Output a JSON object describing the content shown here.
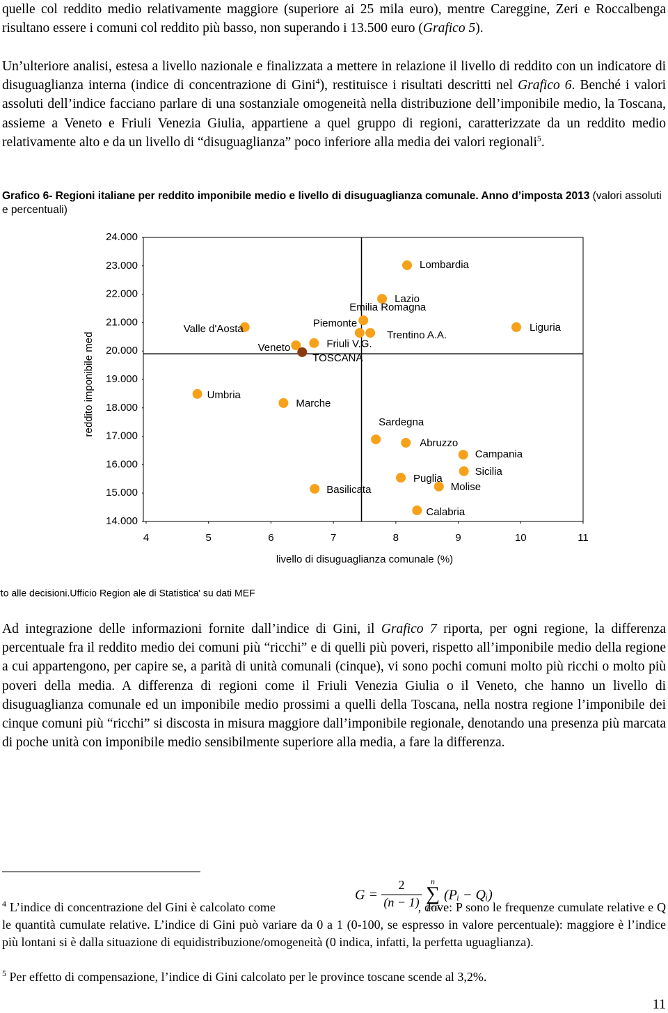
{
  "paragraphs": [
    {
      "runs": [
        "quelle col reddito medio relativamente maggiore (superiore ai 25 mila euro), mentre Careggine, Zeri e Roccalbenga risultano essere i comuni col reddito più basso, non superando i 13.500 euro (",
        {
          "italic": "Grafico 5"
        },
        ")."
      ]
    },
    {
      "runs": [
        "Un’ulteriore analisi, estesa a livello nazionale e finalizzata a mettere in relazione il livello di reddito con un indicatore di disuguaglianza interna (indice di concentrazione di Gini",
        {
          "sup": "4"
        },
        "), restituisce i risultati descritti nel ",
        {
          "italic": "Grafico 6"
        },
        ". Benché i valori assoluti dell’indice facciano parlare di una sostanziale omogeneità nella distribuzione dell’imponibile medio, la Toscana, assieme a Veneto e Friuli Venezia Giulia, appartiene a quel gruppo di regioni, caratterizzate da un reddito medio relativamente alto e da un livello di “disuguaglianza” poco inferiore alla media dei valori regionali",
        {
          "sup": "5"
        },
        "."
      ]
    },
    {
      "runs": [
        "Ad integrazione delle informazioni fornite dall’indice di Gini, il ",
        {
          "italic": "Grafico 7"
        },
        " riporta, per ogni regione, la differenza percentuale fra il reddito medio dei comuni più “ricchi” e di quelli più poveri, rispetto all’imponibile medio della regione a cui appartengono, per capire se, a parità di unità comunali (cinque), vi sono pochi comuni molto più ricchi o molto più poveri della media. A differenza di regioni come il Friuli Venezia Giulia o il Veneto, che hanno un livello di disuguaglianza comunale ed un imponibile medio prossimi a quelli della Toscana, nella nostra regione l’imponibile dei cinque comuni più “ricchi” si discosta in misura maggiore dall’imponibile regionale, denotando una presenza più marcata di poche unità con imponibile medio sensibilmente superiore alla media, a fare la differenza."
      ]
    }
  ],
  "chart_data": {
    "type": "scatter",
    "title": "Grafico 6- Regioni italiane per reddito imponibile medio e livello di disuguaglianza comunale. Anno d’imposta 2013",
    "subtitle": "(valori assoluti e percentuali)",
    "xlabel": "livello di disuguaglianza comunale (%)",
    "ylabel": "reddito imponibile med",
    "source": "Fonte: Elaborazioni 'Settore Sistema Informativo di supporto alle decisioni.Ufficio Region ale di Statistica' su dati MEF",
    "labels": [
      "Lombardia",
      "Lazio",
      "Emilia Romagna",
      "Piemonte",
      "Trentino A.A.",
      "Liguria",
      "Valle d'Aosta",
      "Veneto",
      "Friuli V.G.",
      "TOSCANA",
      "Umbria",
      "Marche",
      "Sardegna",
      "Abruzzo",
      "Campania",
      "Sicilia",
      "Puglia",
      "Molise",
      "Basilicata",
      "Calabria"
    ],
    "x": [
      8.18,
      7.78,
      7.48,
      7.42,
      7.59,
      9.93,
      5.58,
      6.4,
      6.69,
      6.5,
      4.82,
      6.2,
      7.68,
      8.16,
      9.08,
      9.09,
      8.08,
      8.69,
      6.7,
      8.34
    ],
    "values": [
      23020,
      21840,
      21080,
      20640,
      20640,
      20840,
      20840,
      20200,
      20280,
      19960,
      18490,
      18170,
      16890,
      16770,
      16350,
      15770,
      15540,
      15230,
      15150,
      14390
    ],
    "point_colors": [
      "#f7a11a",
      "#f7a11a",
      "#f7a11a",
      "#f7a11a",
      "#f7a11a",
      "#f7a11a",
      "#f7a11a",
      "#f7a11a",
      "#f7a11a",
      "#8b3a10",
      "#f7a11a",
      "#f7a11a",
      "#f7a11a",
      "#f7a11a",
      "#f7a11a",
      "#f7a11a",
      "#f7a11a",
      "#f7a11a",
      "#f7a11a",
      "#f7a11a"
    ],
    "reference_lines": {
      "x": 7.45,
      "y": 19900
    },
    "xlim": [
      4,
      11
    ],
    "xticks": [
      4,
      5,
      6,
      7,
      8,
      9,
      10,
      11
    ],
    "ylim": [
      14000,
      24000
    ],
    "yticks": [
      {
        "value": 14000,
        "label": "14.000"
      },
      {
        "value": 15000,
        "label": "15.000"
      },
      {
        "value": 16000,
        "label": "16.000"
      },
      {
        "value": 17000,
        "label": "17.000"
      },
      {
        "value": 18000,
        "label": "18.000"
      },
      {
        "value": 19000,
        "label": "19.000"
      },
      {
        "value": 20000,
        "label": "20.000"
      },
      {
        "value": 21000,
        "label": "21.000"
      },
      {
        "value": 22000,
        "label": "22.000"
      },
      {
        "value": 23000,
        "label": "23.000"
      },
      {
        "value": 24000,
        "label": "24.000"
      }
    ],
    "grid": false
  },
  "footnotes": [
    {
      "runs": [
        {
          "sup": "4"
        },
        " L’indice di concentrazione del Gini è calcolato come ",
        {
          "formula": true
        },
        ", dove: P sono le frequenze cumulate relative e Q le quantità cumulate relative. L’indice di Gini può variare da 0 a 1 (0-100, se espresso in valore percentuale): maggiore è l’indice più lontani si è dalla situazione di equidistribuzione/omogeneità (0 indica, infatti, la perfetta uguaglianza)."
      ]
    },
    {
      "runs": [
        {
          "sup": "5"
        },
        " Per effetto di compensazione, l’indice di Gini calcolato per le province toscane scende al 3,2%."
      ]
    }
  ],
  "formula": {
    "lhs": "G =",
    "numerator": "2",
    "denominator": "(n − 1)",
    "sum": "∑",
    "upper": "n",
    "lower": "i=0",
    "body": "(Pᵢ − Qᵢ)"
  },
  "page_number": "11"
}
